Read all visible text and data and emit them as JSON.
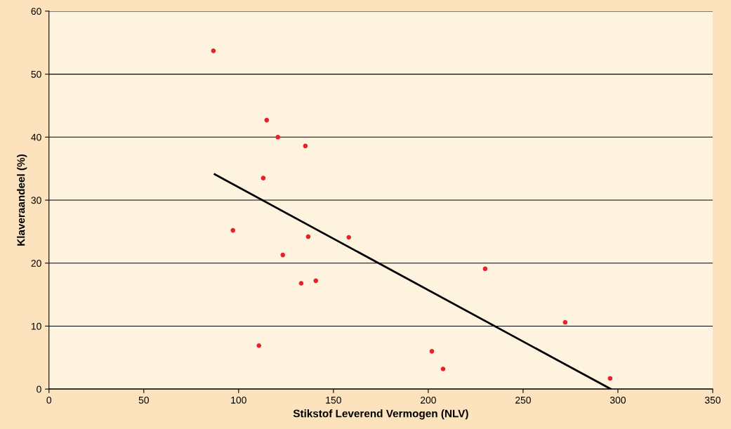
{
  "chart_data": {
    "type": "scatter",
    "xlabel": "Stikstof Leverend Vermogen (NLV)",
    "ylabel": "Klaveraandeel (%)",
    "xlim": [
      0,
      350
    ],
    "xticks": [
      0,
      50,
      100,
      150,
      200,
      250,
      300,
      350
    ],
    "ylim": [
      0,
      60
    ],
    "yticks": [
      0,
      10,
      20,
      30,
      40,
      50,
      60
    ],
    "grid": "y",
    "legend": false,
    "marker": "circle",
    "series": [
      {
        "color": "#e8202a",
        "x": [
          86.7,
          114.8,
          120.7,
          135.2,
          113,
          97,
          136.7,
          158.1,
          123.3,
          133,
          140.7,
          110.7,
          230,
          272.2,
          201.9,
          207.8,
          295.9
        ],
        "values": [
          53.7,
          42.7,
          40.0,
          38.6,
          33.5,
          25.2,
          24.2,
          24.1,
          21.3,
          16.8,
          17.2,
          6.9,
          19.1,
          10.6,
          6.0,
          3.2,
          1.7
        ]
      },
      {
        "type": "line",
        "color": "#000000",
        "x": [
          87.4,
          296.3
        ],
        "values": [
          34.1,
          0
        ],
        "marker": "none",
        "line_style": "solid"
      }
    ]
  }
}
